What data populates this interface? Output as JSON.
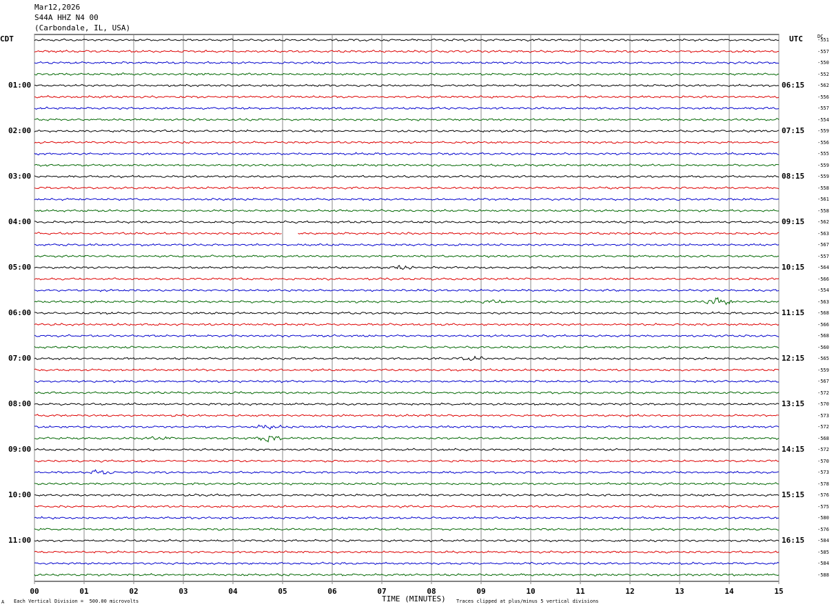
{
  "header": {
    "date": "Mar12,2026",
    "station": "S44A HHZ N4 00",
    "location": "(Carbondale, IL, USA)"
  },
  "left_zone_label": "CDT",
  "right_zone_label": "UTC",
  "dc_label": "DC",
  "footer": {
    "mark": "A",
    "scale_text": "Each Vertical Division =  500.00 microvolts",
    "clip_text": "Traces clipped at plus/minus 5 vertical divisions"
  },
  "chart_data": {
    "type": "line",
    "title": "",
    "xlabel": "TIME (MINUTES)",
    "xlim": [
      0,
      15
    ],
    "x_ticks": [
      "00",
      "01",
      "02",
      "03",
      "04",
      "05",
      "06",
      "07",
      "08",
      "09",
      "10",
      "11",
      "12",
      "13",
      "14",
      "15"
    ],
    "left_time_labels": [
      "01:00",
      "02:00",
      "03:00",
      "04:00",
      "05:00",
      "06:00",
      "07:00",
      "08:00",
      "09:00",
      "10:00",
      "11:00"
    ],
    "right_time_labels": [
      "06:15",
      "07:15",
      "08:15",
      "09:15",
      "10:15",
      "11:15",
      "12:15",
      "13:15",
      "14:15",
      "15:15",
      "16:15"
    ],
    "trace_colors": [
      "#000000",
      "#dd0000",
      "#0000cc",
      "#006600"
    ],
    "dc_offsets": [
      -551,
      -557,
      -550,
      -552,
      -562,
      -556,
      -557,
      -554,
      -559,
      -556,
      -555,
      -559,
      -559,
      -558,
      -561,
      -558,
      -562,
      -563,
      -567,
      -557,
      -564,
      -566,
      -554,
      -563,
      -568,
      -566,
      -568,
      -560,
      -565,
      -559,
      -567,
      -572,
      -570,
      -573,
      -572,
      -568,
      -572,
      -570,
      -573,
      -578,
      -576,
      -575,
      -580,
      -576,
      -584,
      -585,
      -584,
      -588
    ],
    "events": [
      {
        "trace": 23,
        "minute": 9.3,
        "amplitude": 2.0
      },
      {
        "trace": 23,
        "minute": 13.8,
        "amplitude": 5.0
      },
      {
        "trace": 35,
        "minute": 2.5,
        "amplitude": 1.5
      },
      {
        "trace": 35,
        "minute": 4.7,
        "amplitude": 4.0
      },
      {
        "trace": 34,
        "minute": 4.7,
        "amplitude": 2.0
      },
      {
        "trace": 38,
        "minute": 1.3,
        "amplitude": 2.5
      },
      {
        "trace": 20,
        "minute": 7.4,
        "amplitude": 2.0
      },
      {
        "trace": 28,
        "minute": 8.8,
        "amplitude": 2.0
      }
    ],
    "gaps": [
      {
        "trace": 17,
        "from_minute": 5.0,
        "to_minute": 5.3
      }
    ],
    "grid": true
  }
}
